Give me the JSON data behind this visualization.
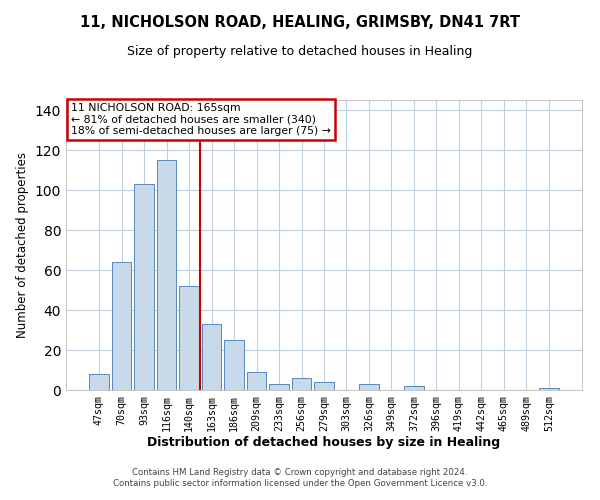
{
  "title": "11, NICHOLSON ROAD, HEALING, GRIMSBY, DN41 7RT",
  "subtitle": "Size of property relative to detached houses in Healing",
  "xlabel": "Distribution of detached houses by size in Healing",
  "ylabel": "Number of detached properties",
  "bar_labels": [
    "47sqm",
    "70sqm",
    "93sqm",
    "116sqm",
    "140sqm",
    "163sqm",
    "186sqm",
    "209sqm",
    "233sqm",
    "256sqm",
    "279sqm",
    "303sqm",
    "326sqm",
    "349sqm",
    "372sqm",
    "396sqm",
    "419sqm",
    "442sqm",
    "465sqm",
    "489sqm",
    "512sqm"
  ],
  "bar_heights": [
    8,
    64,
    103,
    115,
    52,
    33,
    25,
    9,
    3,
    6,
    4,
    0,
    3,
    0,
    2,
    0,
    0,
    0,
    0,
    0,
    1
  ],
  "bar_color": "#c8daea",
  "bar_edge_color": "#5588bb",
  "vline_color": "#cc0000",
  "vline_x": 4.5,
  "annotation_text": "11 NICHOLSON ROAD: 165sqm\n← 81% of detached houses are smaller (340)\n18% of semi-detached houses are larger (75) →",
  "annotation_box_edge": "#cc0000",
  "ylim": [
    0,
    145
  ],
  "yticks": [
    0,
    20,
    40,
    60,
    80,
    100,
    120,
    140
  ],
  "grid_color": "#c0d0e0",
  "footer1": "Contains HM Land Registry data © Crown copyright and database right 2024.",
  "footer2": "Contains public sector information licensed under the Open Government Licence v3.0."
}
